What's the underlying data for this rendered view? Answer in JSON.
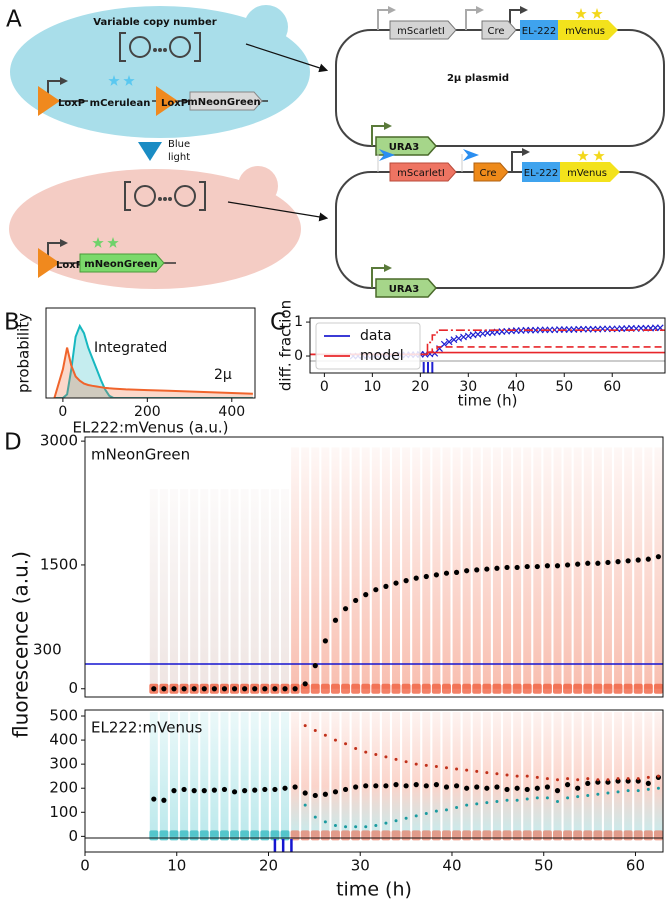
{
  "panel_labels": [
    "A",
    "B",
    "C",
    "D"
  ],
  "diagram": {
    "cell_1": {
      "title": "Variable copy number",
      "parts": [
        "LoxP",
        "mCerulean",
        "LoxP",
        "mNeonGreen"
      ]
    },
    "induction": [
      "Blue",
      "light"
    ],
    "cell_2": {
      "parts": [
        "LoxP",
        "mNeonGreen"
      ]
    },
    "plasmid_1": {
      "parts": [
        "mScarletI",
        "Cre",
        "EL-222",
        "mVenus",
        "URA3"
      ],
      "label": "2μ plasmid"
    },
    "plasmid_2": {
      "parts": [
        "mScarletI",
        "Cre",
        "EL-222",
        "mVenus",
        "URA3"
      ]
    }
  },
  "chart_data": [
    {
      "type": "area",
      "xlabel": "EL222:mVenus (a.u.)",
      "ylabel": "probability",
      "x": [
        -20,
        0,
        10,
        20,
        30,
        40,
        50,
        60,
        70,
        80,
        90,
        100,
        110,
        120,
        150,
        200,
        250,
        300,
        350,
        400,
        450
      ],
      "series": [
        {
          "name": "Integrated",
          "color": "#17b8c0",
          "values": [
            0,
            0,
            0.05,
            0.4,
            0.85,
            1.0,
            0.9,
            0.7,
            0.55,
            0.4,
            0.25,
            0.12,
            0.03,
            0,
            0,
            0,
            0,
            0,
            0,
            0,
            0
          ]
        },
        {
          "name": "2μ",
          "color": "#f0642c",
          "values": [
            0,
            0.4,
            0.7,
            0.45,
            0.3,
            0.24,
            0.2,
            0.18,
            0.17,
            0.16,
            0.15,
            0.14,
            0.135,
            0.13,
            0.12,
            0.11,
            0.1,
            0.09,
            0.08,
            0.07,
            0.06
          ]
        }
      ],
      "xlim": [
        -40,
        455
      ],
      "ylim": [
        0,
        1.25
      ],
      "xticks": [
        0,
        200,
        400
      ]
    },
    {
      "type": "line",
      "xlabel": "time (h)",
      "ylabel": "diff. fraction",
      "legend": "upper left",
      "series": [
        {
          "name": "data",
          "color": "#1f1fd0",
          "marker": "x",
          "x": [
            6,
            7,
            8,
            9,
            10,
            11,
            12,
            13,
            14,
            15,
            16,
            17,
            18,
            19,
            20,
            21,
            22,
            23,
            24,
            25,
            26,
            27,
            28,
            29,
            30,
            31,
            32,
            33,
            34,
            35,
            36,
            37,
            38,
            39,
            40,
            41,
            42,
            43,
            44,
            45,
            46,
            47,
            48,
            49,
            50,
            51,
            52,
            53,
            54,
            55,
            56,
            57,
            58,
            59,
            60,
            61,
            62,
            63,
            64,
            65,
            66,
            67,
            68,
            69,
            70
          ],
          "values": [
            0,
            0,
            0.01,
            0.01,
            0.01,
            0.01,
            0.02,
            0.02,
            0.02,
            0.03,
            0.03,
            0.03,
            0.04,
            0.04,
            0.05,
            0.05,
            0.06,
            0.08,
            0.22,
            0.35,
            0.42,
            0.48,
            0.52,
            0.56,
            0.59,
            0.62,
            0.64,
            0.66,
            0.68,
            0.69,
            0.71,
            0.72,
            0.73,
            0.74,
            0.75,
            0.75,
            0.76,
            0.76,
            0.76,
            0.77,
            0.77,
            0.77,
            0.77,
            0.78,
            0.78,
            0.78,
            0.78,
            0.79,
            0.79,
            0.79,
            0.79,
            0.79,
            0.8,
            0.8,
            0.8,
            0.8,
            0.81,
            0.81,
            0.82,
            0.81,
            0.82,
            0.82,
            0.82,
            0.83,
            0.83
          ]
        },
        {
          "name": "model",
          "color": "#e8262a",
          "dash": "solid",
          "x": [
            -3,
            21.5,
            21.5,
            22.5,
            22.5,
            23.5,
            23.5,
            71
          ],
          "values": [
            0.05,
            0.05,
            0.1,
            0.1,
            0.1,
            0.1,
            0.1,
            0.1
          ]
        },
        {
          "color": "#e8262a",
          "dash": "dashed",
          "x": [
            -3,
            21.5,
            21.5,
            22.5,
            22.5,
            23.5,
            23.5,
            71
          ],
          "values": [
            0.05,
            0.05,
            0.12,
            0.12,
            0.2,
            0.2,
            0.27,
            0.27
          ]
        },
        {
          "color": "#e8262a",
          "dash": "dashdot",
          "x": [
            -3,
            21.5,
            21.5,
            22.5,
            22.5,
            23.5,
            23.5,
            71
          ],
          "values": [
            0.05,
            0.05,
            0.4,
            0.4,
            0.62,
            0.62,
            0.76,
            0.76
          ]
        }
      ],
      "pulses": [
        20.7,
        21.6,
        22.5
      ],
      "pulse_color": "#1f1fd0",
      "xlim": [
        -3,
        71
      ],
      "ylim": [
        -0.5,
        1.12
      ],
      "xticks": [
        0,
        10,
        20,
        30,
        40,
        50,
        60
      ],
      "yticks": [
        0,
        1
      ]
    },
    {
      "type": "scatter",
      "label": "mNeonGreen",
      "hline": 300,
      "hline_color": "#1515d0",
      "x": [
        7.5,
        8.6,
        9.7,
        10.8,
        11.9,
        13,
        14.1,
        15.2,
        16.3,
        17.4,
        18.5,
        19.6,
        20.7,
        21.8,
        22.9,
        24,
        25.1,
        26.2,
        27.3,
        28.4,
        29.5,
        30.6,
        31.7,
        32.8,
        33.9,
        35,
        36.1,
        37.2,
        38.3,
        39.4,
        40.5,
        41.6,
        42.7,
        43.8,
        44.9,
        46,
        47.1,
        48.2,
        49.3,
        50.4,
        51.5,
        52.6,
        53.7,
        54.8,
        55.9,
        57,
        58.1,
        59.2,
        60.3,
        61.4,
        62.5
      ],
      "series": [
        {
          "color": "#000000",
          "values": [
            0,
            0,
            0,
            0,
            0,
            0,
            0,
            0,
            0,
            0,
            0,
            0,
            0,
            0,
            0,
            60,
            280,
            580,
            830,
            970,
            1070,
            1140,
            1200,
            1240,
            1280,
            1310,
            1340,
            1360,
            1380,
            1400,
            1410,
            1430,
            1440,
            1450,
            1460,
            1470,
            1470,
            1480,
            1480,
            1490,
            1490,
            1500,
            1510,
            1520,
            1520,
            1530,
            1540,
            1550,
            1560,
            1570,
            1600
          ]
        }
      ],
      "xlim": [
        0,
        63
      ],
      "ylim": [
        -100,
        3050
      ],
      "yticks": [
        0,
        1500,
        3000
      ]
    },
    {
      "type": "scatter",
      "label": "EL222:mVenus",
      "xlabel": "time (h)",
      "ylabel": "fluorescence (a.u.)",
      "x": [
        7.5,
        8.6,
        9.7,
        10.8,
        11.9,
        13,
        14.1,
        15.2,
        16.3,
        17.4,
        18.5,
        19.6,
        20.7,
        21.8,
        22.9,
        24,
        25.1,
        26.2,
        27.3,
        28.4,
        29.5,
        30.6,
        31.7,
        32.8,
        33.9,
        35,
        36.1,
        37.2,
        38.3,
        39.4,
        40.5,
        41.6,
        42.7,
        43.8,
        44.9,
        46,
        47.1,
        48.2,
        49.3,
        50.4,
        51.5,
        52.6,
        53.7,
        54.8,
        55.9,
        57,
        58.1,
        59.2,
        60.3,
        61.4,
        62.5
      ],
      "series": [
        {
          "color": "#000000",
          "values": [
            155,
            150,
            190,
            195,
            190,
            190,
            192,
            195,
            185,
            190,
            192,
            195,
            195,
            200,
            205,
            180,
            170,
            175,
            185,
            195,
            205,
            210,
            210,
            210,
            215,
            210,
            215,
            210,
            215,
            205,
            210,
            200,
            205,
            200,
            205,
            195,
            200,
            195,
            200,
            205,
            190,
            215,
            200,
            220,
            225,
            225,
            230,
            230,
            230,
            220,
            245
          ]
        },
        {
          "color": "#c0301a",
          "values": [
            null,
            null,
            null,
            null,
            null,
            null,
            null,
            null,
            null,
            null,
            null,
            null,
            null,
            null,
            null,
            460,
            440,
            420,
            400,
            385,
            365,
            350,
            340,
            330,
            320,
            310,
            300,
            295,
            290,
            285,
            280,
            275,
            270,
            265,
            260,
            255,
            250,
            250,
            245,
            240,
            235,
            240,
            235,
            240,
            235,
            235,
            240,
            240,
            240,
            245,
            250
          ]
        },
        {
          "color": "#1a9aa0",
          "values": [
            null,
            null,
            null,
            null,
            null,
            null,
            null,
            null,
            null,
            null,
            null,
            null,
            null,
            null,
            null,
            130,
            80,
            60,
            45,
            40,
            40,
            40,
            45,
            55,
            65,
            75,
            85,
            95,
            105,
            110,
            120,
            130,
            135,
            140,
            145,
            150,
            150,
            155,
            160,
            160,
            145,
            160,
            165,
            170,
            175,
            180,
            185,
            190,
            190,
            195,
            200
          ]
        }
      ],
      "pulses": [
        20.7,
        21.6,
        22.5
      ],
      "pulse_color": "#1515d0",
      "xlim": [
        0,
        63
      ],
      "ylim": [
        -65,
        525
      ],
      "xticks": [
        0,
        10,
        20,
        30,
        40,
        50,
        60
      ],
      "yticks": [
        0,
        100,
        200,
        300,
        400,
        500
      ]
    }
  ]
}
